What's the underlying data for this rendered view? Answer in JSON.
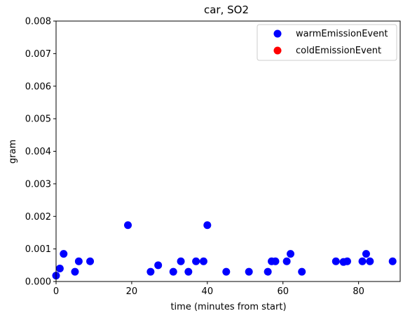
{
  "chart_data": {
    "type": "scatter",
    "title": "car, SO2",
    "xlabel": "time (minutes from start)",
    "ylabel": "gram",
    "xlim": [
      0,
      91
    ],
    "ylim": [
      0,
      0.008
    ],
    "xticks": [
      "0",
      "20",
      "40",
      "60",
      "80"
    ],
    "xtick_values": [
      0,
      20,
      40,
      60,
      80
    ],
    "yticks": [
      "0.000",
      "0.001",
      "0.002",
      "0.003",
      "0.004",
      "0.005",
      "0.006",
      "0.007",
      "0.008"
    ],
    "ytick_values": [
      0,
      0.001,
      0.002,
      0.003,
      0.004,
      0.005,
      0.006,
      0.007,
      0.008
    ],
    "grid": false,
    "legend": "top-right",
    "series": [
      {
        "name": "warmEmissionEvent",
        "color": "#0000ff",
        "points": [
          [
            0,
            0.00018
          ],
          [
            1,
            0.0004
          ],
          [
            2,
            0.00085
          ],
          [
            5,
            0.0003
          ],
          [
            6,
            0.00062
          ],
          [
            9,
            0.00062
          ],
          [
            19,
            0.00173
          ],
          [
            25,
            0.0003
          ],
          [
            27,
            0.0005
          ],
          [
            31,
            0.0003
          ],
          [
            33,
            0.00062
          ],
          [
            35,
            0.0003
          ],
          [
            37,
            0.00062
          ],
          [
            39,
            0.00062
          ],
          [
            40,
            0.00173
          ],
          [
            45,
            0.0003
          ],
          [
            51,
            0.0003
          ],
          [
            56,
            0.0003
          ],
          [
            57,
            0.00062
          ],
          [
            58,
            0.00062
          ],
          [
            61,
            0.00062
          ],
          [
            62,
            0.00085
          ],
          [
            65,
            0.0003
          ],
          [
            74,
            0.00062
          ],
          [
            76,
            0.0006
          ],
          [
            77,
            0.00062
          ],
          [
            81,
            0.00062
          ],
          [
            82,
            0.00085
          ],
          [
            83,
            0.00062
          ],
          [
            89,
            0.00062
          ]
        ]
      },
      {
        "name": "coldEmissionEvent",
        "color": "#ff0000",
        "points": []
      }
    ]
  }
}
